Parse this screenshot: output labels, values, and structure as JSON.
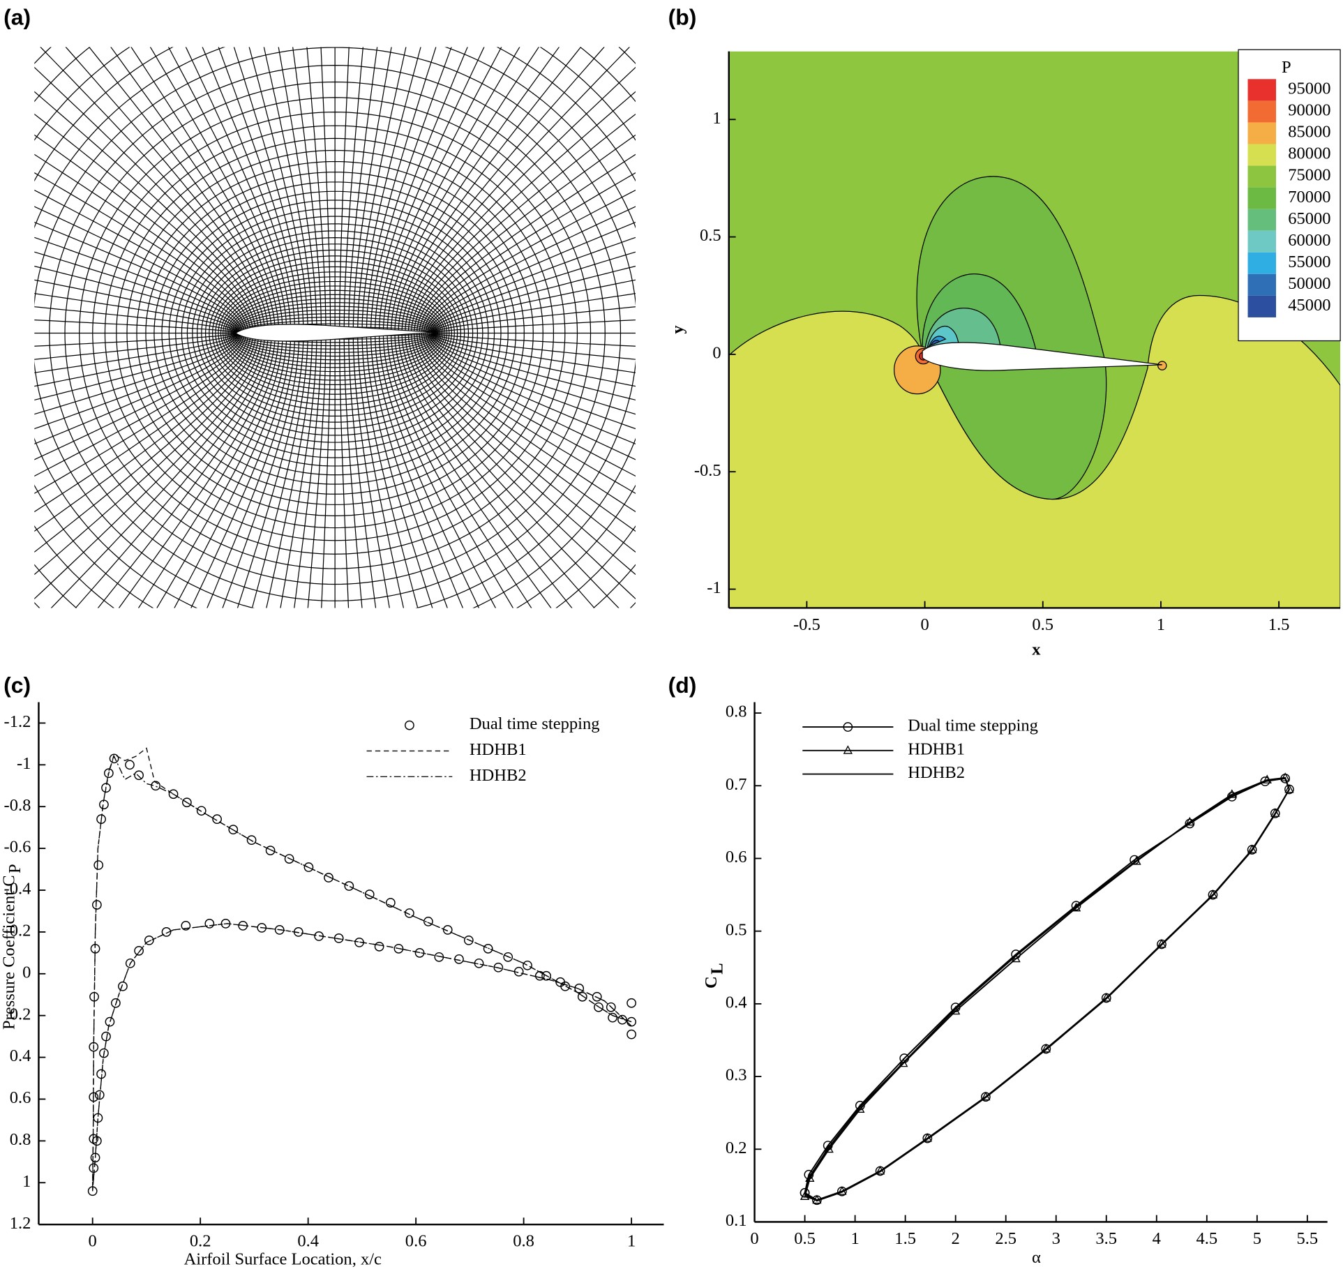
{
  "figure_labels": [
    "(a)",
    "(b)",
    "(c)",
    "(d)"
  ],
  "chart_data": [
    {
      "type": "contour",
      "xlabel": "x",
      "ylabel": "y",
      "xlim": [
        -0.83,
        1.76
      ],
      "ylim": [
        -1.08,
        1.29
      ],
      "xticks": [
        -0.5,
        0,
        0.5,
        1,
        1.5
      ],
      "yticks": [
        -1,
        -0.5,
        0,
        0.5,
        1
      ],
      "legend_title": "P",
      "levels": [
        95000,
        90000,
        85000,
        80000,
        75000,
        70000,
        65000,
        60000,
        55000,
        50000,
        45000
      ],
      "colors": [
        "#e8302d",
        "#f26b32",
        "#f5ae45",
        "#d6df4f",
        "#8dc540",
        "#6cb944",
        "#66be7d",
        "#6ec9c4",
        "#2eaee2",
        "#2f6fb6",
        "#2c4f9f"
      ]
    },
    {
      "type": "line",
      "xlabel": "Airfoil Surface Location, x/c",
      "ylabel": "Pressure Coefficient C",
      "ylabel_subscript": "P",
      "xlim": [
        -0.1,
        1.06
      ],
      "ylim": [
        1.2,
        -1.3
      ],
      "xticks": [
        0,
        0.2,
        0.4,
        0.6,
        0.8,
        1
      ],
      "yticks": [
        1.2,
        1,
        0.8,
        0.6,
        0.4,
        0.2,
        0,
        -0.2,
        -0.4,
        -0.6,
        -0.8,
        -1,
        -1.2
      ],
      "series": [
        {
          "name": "Dual time stepping",
          "color": "#000000",
          "marker": "circle",
          "dash": "none",
          "x": [
            0,
            0.002,
            0.002,
            0.002,
            0.002,
            0.003,
            0.005,
            0.008,
            0.011,
            0.016,
            0.021,
            0.025,
            0.03,
            0.04,
            0.069,
            0.086,
            0.117,
            0.15,
            0.175,
            0.202,
            0.231,
            0.261,
            0.295,
            0.33,
            0.365,
            0.401,
            0.438,
            0.476,
            0.514,
            0.553,
            0.588,
            0.623,
            0.659,
            0.698,
            0.734,
            0.771,
            0.807,
            0.842,
            0.877,
            0.909,
            0.939,
            0.965,
            1.0,
            0.005,
            0.008,
            0.01,
            0.013,
            0.016,
            0.021,
            0.025,
            0.032,
            0.043,
            0.056,
            0.07,
            0.086,
            0.105,
            0.137,
            0.173,
            0.217,
            0.247,
            0.279,
            0.314,
            0.347,
            0.382,
            0.42,
            0.457,
            0.495,
            0.532,
            0.568,
            0.607,
            0.643,
            0.68,
            0.717,
            0.753,
            0.791,
            0.83,
            0.868,
            0.903,
            0.936,
            0.962,
            0.983,
            1.0,
            1.0
          ],
          "values": [
            1.04,
            0.93,
            0.79,
            0.59,
            0.35,
            0.11,
            -0.12,
            -0.33,
            -0.52,
            -0.74,
            -0.81,
            -0.89,
            -0.96,
            -1.03,
            -1.0,
            -0.95,
            -0.9,
            -0.86,
            -0.82,
            -0.78,
            -0.74,
            -0.69,
            -0.64,
            -0.59,
            -0.55,
            -0.51,
            -0.46,
            -0.42,
            -0.38,
            -0.34,
            -0.29,
            -0.25,
            -0.21,
            -0.16,
            -0.12,
            -0.08,
            -0.04,
            0.01,
            0.06,
            0.11,
            0.16,
            0.21,
            0.23,
            0.88,
            0.8,
            0.69,
            0.58,
            0.48,
            0.38,
            0.3,
            0.23,
            0.14,
            0.06,
            -0.05,
            -0.11,
            -0.16,
            -0.2,
            -0.23,
            -0.24,
            -0.24,
            -0.23,
            -0.22,
            -0.21,
            -0.2,
            -0.18,
            -0.17,
            -0.15,
            -0.13,
            -0.12,
            -0.1,
            -0.08,
            -0.07,
            -0.05,
            -0.03,
            -0.01,
            0.01,
            0.04,
            0.07,
            0.11,
            0.16,
            0.22,
            0.29,
            0.14
          ]
        },
        {
          "name": "HDHB1",
          "color": "#000000",
          "marker": "none",
          "dash": "dashed",
          "x": [
            1.0,
            0.965,
            0.94,
            0.9,
            0.85,
            0.8,
            0.7,
            0.6,
            0.5,
            0.4,
            0.3,
            0.2,
            0.15,
            0.115,
            0.1,
            0.08,
            0.06,
            0.04,
            0.03,
            0.02,
            0.01,
            0.005,
            0.002,
            0.001,
            0,
            0.005,
            0.01,
            0.02,
            0.03,
            0.05,
            0.07,
            0.1,
            0.15,
            0.25,
            0.35,
            0.45,
            0.55,
            0.65,
            0.75,
            0.85,
            0.9,
            0.95,
            1.0
          ],
          "values": [
            0.23,
            0.2,
            0.16,
            0.09,
            0.02,
            -0.05,
            -0.16,
            -0.27,
            -0.39,
            -0.51,
            -0.63,
            -0.78,
            -0.86,
            -0.92,
            -1.08,
            -1.04,
            -1.02,
            -1.05,
            -0.96,
            -0.82,
            -0.6,
            -0.2,
            0.35,
            0.8,
            1.04,
            0.88,
            0.69,
            0.4,
            0.25,
            0.09,
            -0.05,
            -0.15,
            -0.21,
            -0.24,
            -0.21,
            -0.17,
            -0.13,
            -0.08,
            -0.03,
            0.03,
            0.07,
            0.13,
            0.25
          ]
        },
        {
          "name": "HDHB2",
          "color": "#000000",
          "marker": "none",
          "dash": "dashdot",
          "x": [
            1.0,
            0.965,
            0.94,
            0.9,
            0.85,
            0.8,
            0.7,
            0.6,
            0.5,
            0.4,
            0.3,
            0.2,
            0.15,
            0.115,
            0.1,
            0.08,
            0.06,
            0.04,
            0.03,
            0.02,
            0.01,
            0.005,
            0.002,
            0.001,
            0,
            0.005,
            0.01,
            0.02,
            0.03,
            0.05,
            0.07,
            0.1,
            0.15,
            0.25,
            0.35,
            0.45,
            0.55,
            0.65,
            0.75,
            0.85,
            0.9,
            0.95,
            1.0
          ],
          "values": [
            0.23,
            0.2,
            0.16,
            0.09,
            0.02,
            -0.05,
            -0.16,
            -0.27,
            -0.39,
            -0.51,
            -0.63,
            -0.78,
            -0.86,
            -0.9,
            -0.91,
            -0.96,
            -0.93,
            -1.04,
            -0.97,
            -0.82,
            -0.6,
            -0.2,
            0.35,
            0.8,
            1.04,
            0.88,
            0.69,
            0.4,
            0.25,
            0.09,
            -0.05,
            -0.15,
            -0.21,
            -0.24,
            -0.21,
            -0.17,
            -0.13,
            -0.08,
            -0.03,
            0.03,
            0.07,
            0.13,
            0.25
          ]
        }
      ]
    },
    {
      "type": "line",
      "xlabel": "α",
      "ylabel": "C",
      "ylabel_subscript": "L",
      "xlim": [
        0,
        5.7
      ],
      "ylim": [
        0.1,
        0.815
      ],
      "xticks": [
        0,
        0.5,
        1,
        1.5,
        2,
        2.5,
        3,
        3.5,
        4,
        4.5,
        5,
        5.5
      ],
      "yticks": [
        0.1,
        0.2,
        0.3,
        0.4,
        0.5,
        0.6,
        0.7,
        0.8
      ],
      "series": [
        {
          "name": "Dual time stepping",
          "color": "#000000",
          "marker": "circle",
          "dash": "solid",
          "x": [
            0.5,
            0.54,
            0.73,
            1.05,
            1.49,
            2.0,
            2.6,
            3.2,
            3.78,
            4.33,
            4.75,
            5.08,
            5.28,
            5.32,
            5.18,
            4.95,
            4.56,
            4.05,
            3.5,
            2.9,
            2.3,
            1.72,
            1.25,
            0.87,
            0.62,
            0.5
          ],
          "values": [
            0.14,
            0.165,
            0.205,
            0.26,
            0.325,
            0.395,
            0.468,
            0.535,
            0.598,
            0.648,
            0.685,
            0.706,
            0.71,
            0.695,
            0.662,
            0.612,
            0.55,
            0.482,
            0.408,
            0.338,
            0.272,
            0.215,
            0.17,
            0.142,
            0.13,
            0.14
          ]
        },
        {
          "name": "HDHB1",
          "color": "#000000",
          "marker": "triangle",
          "dash": "solid",
          "x": [
            0.5,
            0.55,
            0.74,
            1.05,
            1.48,
            2.0,
            2.6,
            3.2,
            3.8,
            4.33,
            4.75,
            5.1,
            5.28,
            5.32,
            5.18,
            4.95,
            4.56,
            4.05,
            3.5,
            2.9,
            2.3,
            1.72,
            1.25,
            0.87,
            0.62,
            0.5
          ],
          "values": [
            0.135,
            0.16,
            0.2,
            0.255,
            0.318,
            0.39,
            0.462,
            0.532,
            0.596,
            0.65,
            0.688,
            0.708,
            0.711,
            0.695,
            0.662,
            0.612,
            0.55,
            0.482,
            0.408,
            0.338,
            0.272,
            0.215,
            0.17,
            0.142,
            0.13,
            0.135
          ]
        },
        {
          "name": "HDHB2",
          "color": "#000000",
          "marker": "none",
          "dash": "solid",
          "x": [
            0.5,
            0.55,
            0.74,
            1.05,
            1.5,
            2.0,
            2.6,
            3.2,
            3.8,
            4.33,
            4.75,
            5.1,
            5.28,
            5.32,
            5.18,
            4.95,
            4.56,
            4.05,
            3.5,
            2.9,
            2.3,
            1.72,
            1.25,
            0.87,
            0.62,
            0.5
          ],
          "values": [
            0.138,
            0.163,
            0.203,
            0.258,
            0.322,
            0.393,
            0.466,
            0.534,
            0.597,
            0.649,
            0.686,
            0.707,
            0.71,
            0.695,
            0.661,
            0.611,
            0.549,
            0.481,
            0.407,
            0.337,
            0.271,
            0.214,
            0.169,
            0.141,
            0.129,
            0.138
          ]
        }
      ]
    }
  ]
}
